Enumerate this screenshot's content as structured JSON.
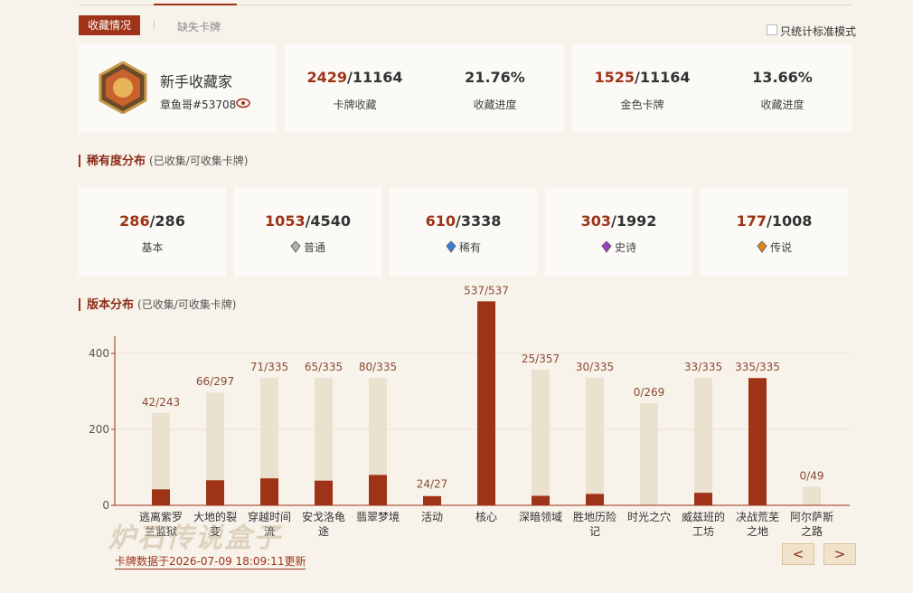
{
  "tabs": {
    "active": "收藏情况",
    "other": "缺失卡牌"
  },
  "standard_only": "只统计标准模式",
  "profile": {
    "title": "新手收藏家",
    "name": "章鱼哥#53708"
  },
  "separator": "/",
  "summary": [
    {
      "owned": 2429,
      "total": 11164,
      "label": "卡牌收藏",
      "progress": "21.76%",
      "progress_label": "收藏进度"
    },
    {
      "owned": 1525,
      "total": 11164,
      "label": "金色卡牌",
      "progress": "13.66%",
      "progress_label": "收藏进度"
    }
  ],
  "rarity": {
    "title": "稀有度分布",
    "note": "(已收集/可收集卡牌)",
    "items": [
      {
        "owned": 286,
        "total": 286,
        "name": "基本"
      },
      {
        "owned": 1053,
        "total": 4540,
        "name": "普通"
      },
      {
        "owned": 610,
        "total": 3338,
        "name": "稀有"
      },
      {
        "owned": 303,
        "total": 1992,
        "name": "史诗"
      },
      {
        "owned": 177,
        "total": 1008,
        "name": "传说"
      }
    ]
  },
  "chart_data": {
    "type": "bar",
    "title": "版本分布",
    "note": "(已收集/可收集卡牌)",
    "categories": [
      "逃离紫罗兰监狱",
      "大地的裂变",
      "穿越时间流",
      "安戈洛龟途",
      "翡翠梦境",
      "活动",
      "核心",
      "深暗领域",
      "胜地历险记",
      "时光之穴",
      "威兹班的工坊",
      "决战荒芜之地",
      "阿尔萨斯之路"
    ],
    "series": [
      {
        "color": "#9e3318",
        "values": [
          42,
          66,
          71,
          65,
          80,
          24,
          537,
          25,
          30,
          0,
          33,
          335,
          0
        ]
      },
      {
        "color": "#ebe1cf",
        "values": [
          243,
          297,
          335,
          335,
          335,
          27,
          537,
          357,
          335,
          269,
          335,
          335,
          49
        ]
      }
    ],
    "ylim": [
      0,
      445
    ],
    "yticks": [
      0,
      200,
      400
    ],
    "grid": true
  },
  "updated": "卡牌数据于2026-07-09 18:09:11更新",
  "watermark": "炉石传说盒子",
  "pager": [
    "<",
    ">"
  ]
}
